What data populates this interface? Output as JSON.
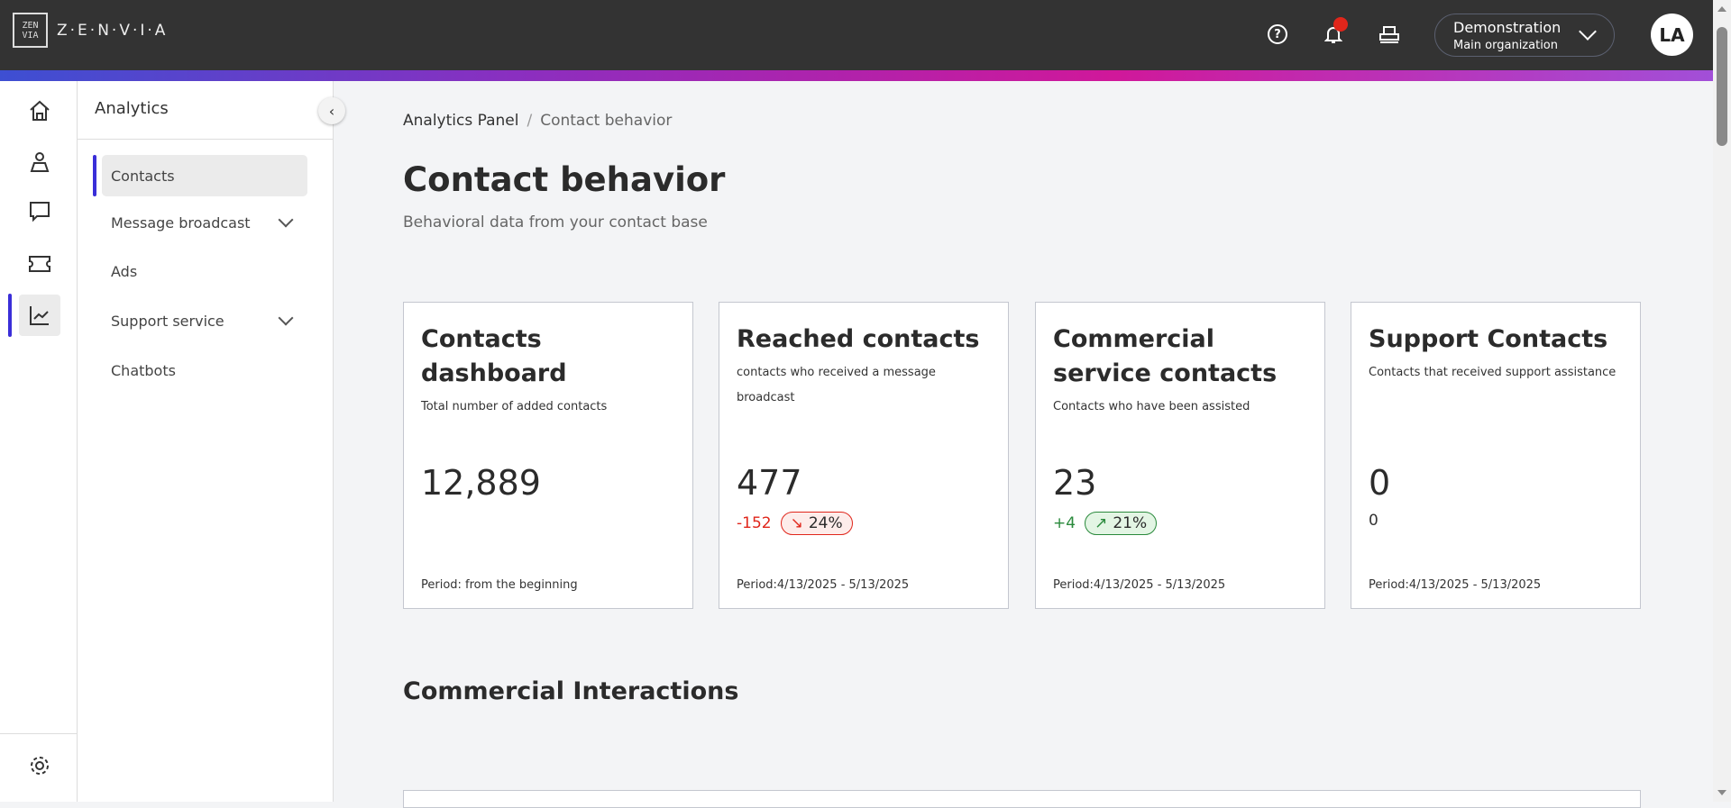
{
  "header": {
    "brand": "Z·E·N·V·I·A",
    "org_name": "Demonstration",
    "org_sub": "Main organization",
    "avatar": "LA",
    "notification_color": "#e0261b"
  },
  "rail": {
    "items": [
      "home",
      "contacts",
      "chat",
      "tickets",
      "analytics"
    ],
    "active": "analytics"
  },
  "submenu": {
    "title": "Analytics",
    "items": [
      {
        "label": "Contacts",
        "active": true
      },
      {
        "label": "Message broadcast",
        "expandable": true
      },
      {
        "label": "Ads"
      },
      {
        "label": "Support service",
        "expandable": true
      },
      {
        "label": "Chatbots"
      }
    ]
  },
  "breadcrumb": {
    "parent": "Analytics Panel",
    "current": "Contact behavior"
  },
  "page": {
    "title": "Contact behavior",
    "subtitle": "Behavioral data from your contact base"
  },
  "cards": [
    {
      "title": "Contacts dashboard",
      "desc": "Total number of added contacts",
      "value": "12,889",
      "period": "Period: from the beginning"
    },
    {
      "title": "Reached contacts",
      "desc": "contacts who received a message broadcast",
      "value": "477",
      "delta": "-152",
      "pct": "24%",
      "period": "Period:4/13/2025 - 5/13/2025"
    },
    {
      "title": "Commercial service contacts",
      "desc": "Contacts who have been assisted",
      "value": "23",
      "delta": "+4",
      "pct": "21%",
      "period": "Period:4/13/2025 - 5/13/2025"
    },
    {
      "title": "Support Contacts",
      "desc": "Contacts that received support assistance",
      "value": "0",
      "delta": "0",
      "period": "Period:4/13/2025 - 5/13/2025"
    }
  ],
  "section": {
    "title": "Commercial Interactions"
  },
  "colors": {
    "accent": "#3a2ed8",
    "negative": "#e0261b",
    "positive": "#2a8a3c"
  }
}
